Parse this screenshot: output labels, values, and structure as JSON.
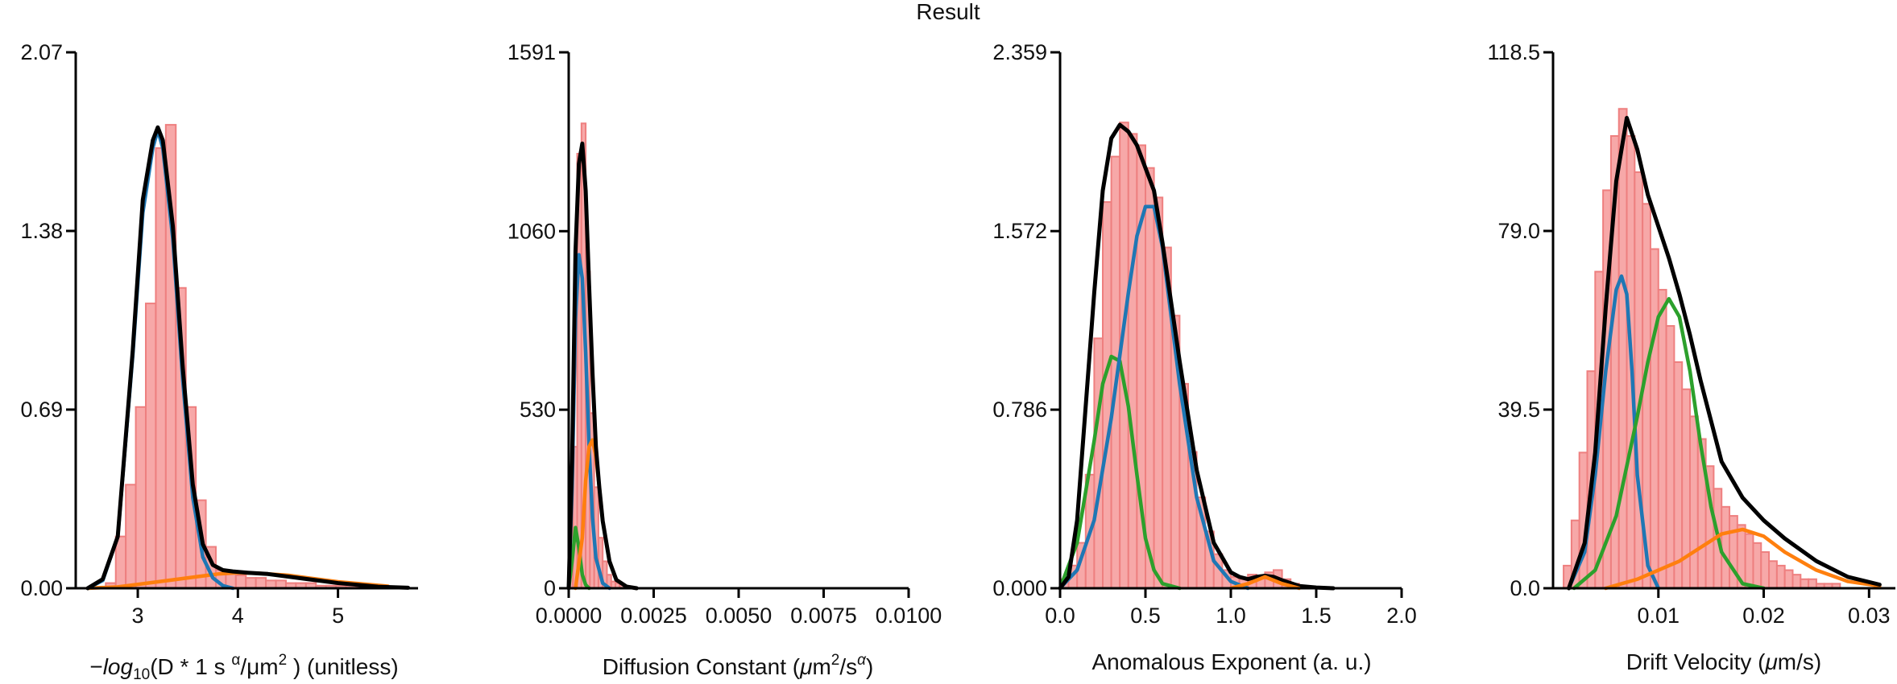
{
  "figure": {
    "title": "Result"
  },
  "colors": {
    "hist_fill": "#f7a8a8",
    "hist_edge": "#ee7f7f",
    "total_fit": "#000000",
    "blue": "#1f77b4",
    "orange": "#ff7f0e",
    "green": "#2ca02c"
  },
  "chart_data": [
    {
      "type": "bar",
      "xlabel_parts": [
        "−",
        "log",
        "10",
        "(D * 1 s ",
        "α",
        "/μm",
        "2",
        " ) (unitless)"
      ],
      "xlim": [
        2.38,
        5.8
      ],
      "ylim": [
        0,
        2.07
      ],
      "xticks": [
        3,
        4,
        5
      ],
      "xtick_labels": [
        "3",
        "4",
        "5"
      ],
      "yticks": [
        0,
        0.69,
        1.38,
        2.07
      ],
      "ytick_labels": [
        "0.00",
        "0.69",
        "1.38",
        "2.07"
      ],
      "hist": {
        "bin_start": 2.38,
        "bin_width": 0.1,
        "values": [
          0,
          0,
          0,
          0.02,
          0.2,
          0.4,
          0.7,
          1.1,
          1.7,
          1.79,
          1.16,
          0.7,
          0.34,
          0.16,
          0.07,
          0.06,
          0.05,
          0.04,
          0.04,
          0.03,
          0.03,
          0.02,
          0.02,
          0.02,
          0.01,
          0.01,
          0.01,
          0.01,
          0.005,
          0.005,
          0.002,
          0.002,
          0.001,
          0.001
        ]
      },
      "series": [
        {
          "color": "#ff7f0e",
          "x": [
            2.5,
            2.8,
            3.0,
            3.2,
            3.4,
            3.6,
            3.8,
            4.0,
            4.2,
            4.5,
            5.0,
            5.5
          ],
          "y": [
            0,
            0.005,
            0.015,
            0.025,
            0.035,
            0.045,
            0.055,
            0.06,
            0.058,
            0.05,
            0.025,
            0.008
          ]
        },
        {
          "color": "#1f77b4",
          "x": [
            2.5,
            2.65,
            2.8,
            2.95,
            3.05,
            3.15,
            3.2,
            3.25,
            3.35,
            3.45,
            3.55,
            3.65,
            3.75,
            3.85,
            3.95
          ],
          "y": [
            0,
            0.03,
            0.2,
            0.9,
            1.45,
            1.7,
            1.77,
            1.7,
            1.35,
            0.8,
            0.35,
            0.12,
            0.04,
            0.01,
            0
          ]
        },
        {
          "color": "#000000",
          "x": [
            2.5,
            2.65,
            2.8,
            2.95,
            3.05,
            3.15,
            3.2,
            3.25,
            3.35,
            3.45,
            3.55,
            3.65,
            3.75,
            3.85,
            3.95,
            4.1,
            4.3,
            4.6,
            5.0,
            5.4,
            5.7
          ],
          "y": [
            0,
            0.035,
            0.2,
            0.92,
            1.5,
            1.73,
            1.78,
            1.73,
            1.4,
            0.85,
            0.4,
            0.17,
            0.09,
            0.07,
            0.065,
            0.06,
            0.055,
            0.04,
            0.02,
            0.006,
            0.002
          ]
        }
      ]
    },
    {
      "type": "bar",
      "xlabel_parts": [
        "Diffusion Constant (",
        "μ",
        "m",
        "2",
        "/s",
        "α",
        ")"
      ],
      "xlim": [
        0,
        0.01
      ],
      "ylim": [
        0,
        1591
      ],
      "xticks": [
        0,
        0.0025,
        0.005,
        0.0075,
        0.01
      ],
      "xtick_labels": [
        "0.0000",
        "0.0025",
        "0.0050",
        "0.0075",
        "0.0100"
      ],
      "yticks": [
        0,
        530,
        1060,
        1591
      ],
      "ytick_labels": [
        "0",
        "530",
        "1060",
        "1591"
      ],
      "hist": {
        "bin_start": 0.0,
        "bin_width": 0.000125,
        "values": [
          40,
          420,
          1290,
          1380,
          940,
          520,
          300,
          150,
          80,
          40,
          20,
          15,
          10,
          5,
          3,
          2,
          1,
          1,
          1,
          1,
          0,
          0,
          0,
          0,
          0,
          0,
          0,
          0,
          0,
          0,
          0,
          0,
          0,
          0,
          0,
          0,
          0,
          0,
          0,
          0,
          0,
          0,
          0,
          0,
          0,
          0,
          0,
          0,
          0,
          0,
          0,
          0,
          0,
          0,
          0,
          0,
          0,
          0,
          0,
          0,
          0,
          0,
          0,
          0,
          0,
          0,
          0,
          0,
          0,
          0,
          0,
          0,
          0,
          0,
          0,
          0,
          0,
          0,
          0,
          0
        ]
      },
      "series": [
        {
          "color": "#2ca02c",
          "x": [
            0,
            0.0001,
            0.0002,
            0.0003,
            0.0004,
            0.0005,
            0.0006
          ],
          "y": [
            0,
            80,
            180,
            120,
            40,
            10,
            0
          ]
        },
        {
          "color": "#1f77b4",
          "x": [
            0,
            0.0001,
            0.0002,
            0.0003,
            0.0004,
            0.0005,
            0.0006,
            0.0007,
            0.0008,
            0.001,
            0.0012
          ],
          "y": [
            0,
            300,
            800,
            990,
            920,
            700,
            420,
            210,
            90,
            15,
            0
          ]
        },
        {
          "color": "#ff7f0e",
          "x": [
            0.0002,
            0.0004,
            0.0005,
            0.0006,
            0.0007,
            0.0008,
            0.0009,
            0.001,
            0.0012,
            0.0014,
            0.0017,
            0.002
          ],
          "y": [
            0,
            150,
            320,
            420,
            440,
            390,
            300,
            200,
            80,
            25,
            5,
            0
          ]
        },
        {
          "color": "#000000",
          "x": [
            0,
            0.0001,
            0.0002,
            0.0003,
            0.0004,
            0.0005,
            0.0006,
            0.0007,
            0.0008,
            0.0009,
            0.001,
            0.0012,
            0.0014,
            0.0017,
            0.002
          ],
          "y": [
            0,
            380,
            1000,
            1260,
            1320,
            1180,
            900,
            640,
            420,
            300,
            200,
            80,
            25,
            5,
            0
          ]
        }
      ]
    },
    {
      "type": "bar",
      "xlabel_parts": [
        "Anomalous Exponent (a. u.)"
      ],
      "xlim": [
        0,
        2.0
      ],
      "ylim": [
        0,
        2.359
      ],
      "xticks": [
        0,
        0.5,
        1.0,
        1.5,
        2.0
      ],
      "xtick_labels": [
        "0.0",
        "0.5",
        "1.0",
        "1.5",
        "2.0"
      ],
      "yticks": [
        0,
        0.786,
        1.572,
        2.359
      ],
      "ytick_labels": [
        "0.000",
        "0.786",
        "1.572",
        "2.359"
      ],
      "hist": {
        "bin_start": 0.0,
        "bin_width": 0.05,
        "values": [
          0.04,
          0.1,
          0.2,
          0.5,
          1.1,
          1.7,
          1.9,
          2.05,
          2.0,
          1.95,
          1.85,
          1.72,
          1.5,
          1.2,
          0.9,
          0.6,
          0.4,
          0.25,
          0.15,
          0.08,
          0.05,
          0.04,
          0.06,
          0.05,
          0.07,
          0.08,
          0.04,
          0.02,
          0.01,
          0.005,
          0.002,
          0.001,
          0,
          0,
          0,
          0,
          0,
          0,
          0,
          0
        ]
      },
      "series": [
        {
          "color": "#2ca02c",
          "x": [
            0,
            0.1,
            0.2,
            0.25,
            0.3,
            0.35,
            0.4,
            0.45,
            0.5,
            0.55,
            0.6,
            0.7
          ],
          "y": [
            0,
            0.2,
            0.65,
            0.9,
            1.02,
            1.0,
            0.8,
            0.5,
            0.22,
            0.08,
            0.02,
            0
          ]
        },
        {
          "color": "#1f77b4",
          "x": [
            0,
            0.1,
            0.2,
            0.3,
            0.4,
            0.45,
            0.5,
            0.55,
            0.6,
            0.7,
            0.8,
            0.9,
            1.0,
            1.1
          ],
          "y": [
            0,
            0.08,
            0.3,
            0.75,
            1.3,
            1.55,
            1.68,
            1.68,
            1.5,
            0.9,
            0.4,
            0.12,
            0.03,
            0
          ]
        },
        {
          "color": "#000000",
          "x": [
            0,
            0.05,
            0.1,
            0.15,
            0.2,
            0.25,
            0.3,
            0.35,
            0.4,
            0.45,
            0.5,
            0.55,
            0.6,
            0.7,
            0.8,
            0.9,
            1.0,
            1.05,
            1.1,
            1.15,
            1.2,
            1.25,
            1.3,
            1.4,
            1.5,
            1.6
          ],
          "y": [
            0,
            0.05,
            0.3,
            0.8,
            1.3,
            1.75,
            1.98,
            2.04,
            2.01,
            1.95,
            1.85,
            1.75,
            1.52,
            1.0,
            0.52,
            0.2,
            0.07,
            0.05,
            0.04,
            0.05,
            0.055,
            0.05,
            0.035,
            0.01,
            0.003,
            0
          ]
        },
        {
          "color": "#ff7f0e",
          "x": [
            1.0,
            1.1,
            1.2,
            1.3,
            1.4
          ],
          "y": [
            0,
            0.02,
            0.05,
            0.02,
            0
          ]
        }
      ]
    },
    {
      "type": "bar",
      "xlabel_parts": [
        "Drift Velocity (",
        "μ",
        "m/s)"
      ],
      "xlim": [
        0.0,
        0.0325
      ],
      "ylim": [
        0,
        118.5
      ],
      "xticks": [
        0.01,
        0.02,
        0.03
      ],
      "xtick_labels": [
        "0.01",
        "0.02",
        "0.03"
      ],
      "yticks": [
        0,
        39.5,
        79.0,
        118.5
      ],
      "ytick_labels": [
        "0.0",
        "39.5",
        "79.0",
        "118.5"
      ],
      "hist": {
        "bin_start": 0.001,
        "bin_width": 0.00075,
        "values": [
          5,
          15,
          30,
          48,
          70,
          88,
          100,
          106,
          100,
          92,
          85,
          75,
          66,
          58,
          50,
          44,
          38,
          33,
          27,
          22,
          18,
          16,
          14,
          12,
          10,
          8,
          6,
          5,
          4,
          3,
          2,
          2,
          1,
          1,
          1,
          0,
          0,
          0,
          0,
          0,
          0,
          0
        ]
      },
      "series": [
        {
          "color": "#1f77b4",
          "x": [
            0.0015,
            0.003,
            0.004,
            0.005,
            0.006,
            0.0065,
            0.007,
            0.0075,
            0.008,
            0.009,
            0.01
          ],
          "y": [
            0,
            8,
            25,
            48,
            66,
            69,
            65,
            48,
            25,
            5,
            0
          ]
        },
        {
          "color": "#2ca02c",
          "x": [
            0.002,
            0.004,
            0.006,
            0.008,
            0.009,
            0.01,
            0.011,
            0.012,
            0.013,
            0.014,
            0.015,
            0.016,
            0.018,
            0.02
          ],
          "y": [
            0,
            4,
            16,
            38,
            50,
            60,
            64,
            60,
            48,
            32,
            18,
            8,
            1,
            0
          ]
        },
        {
          "color": "#ff7f0e",
          "x": [
            0.005,
            0.008,
            0.01,
            0.012,
            0.014,
            0.016,
            0.018,
            0.02,
            0.022,
            0.025,
            0.028,
            0.031
          ],
          "y": [
            0,
            2,
            4,
            6,
            9,
            12,
            13,
            11.5,
            8,
            4,
            1.5,
            0.5
          ]
        },
        {
          "color": "#000000",
          "x": [
            0.0015,
            0.003,
            0.004,
            0.005,
            0.006,
            0.007,
            0.008,
            0.009,
            0.01,
            0.011,
            0.012,
            0.013,
            0.014,
            0.015,
            0.016,
            0.018,
            0.02,
            0.022,
            0.025,
            0.028,
            0.031
          ],
          "y": [
            0,
            10,
            30,
            62,
            90,
            104,
            97,
            87,
            80,
            73,
            65,
            56,
            46,
            37,
            28,
            20,
            15,
            11,
            6,
            2.5,
            0.8
          ]
        }
      ]
    }
  ]
}
